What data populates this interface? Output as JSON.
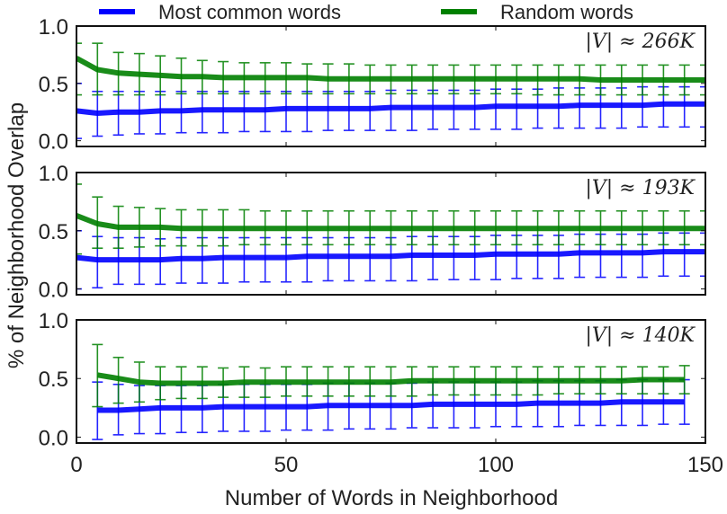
{
  "chart_data": [
    {
      "type": "line",
      "panel": 1,
      "annotation": "|V| ≈ 266K",
      "xlim": [
        0,
        150
      ],
      "ylim": [
        -0.05,
        1.0
      ],
      "yticks": [
        "0.0",
        "0.5",
        "1.0"
      ],
      "x": [
        0,
        5,
        10,
        15,
        20,
        25,
        30,
        35,
        40,
        45,
        50,
        55,
        60,
        65,
        70,
        75,
        80,
        85,
        90,
        95,
        100,
        105,
        110,
        115,
        120,
        125,
        130,
        135,
        140,
        145,
        150
      ],
      "series": [
        {
          "name": "Most common words",
          "color": "#0000ff",
          "values": [
            0.26,
            0.24,
            0.25,
            0.25,
            0.26,
            0.26,
            0.27,
            0.27,
            0.27,
            0.27,
            0.28,
            0.28,
            0.28,
            0.28,
            0.28,
            0.29,
            0.29,
            0.29,
            0.29,
            0.29,
            0.3,
            0.3,
            0.3,
            0.3,
            0.31,
            0.31,
            0.31,
            0.31,
            0.32,
            0.32,
            0.32
          ],
          "err_low": [
            0.02,
            0.04,
            0.05,
            0.06,
            0.06,
            0.07,
            0.07,
            0.07,
            0.08,
            0.08,
            0.08,
            0.08,
            0.09,
            0.09,
            0.09,
            0.09,
            0.09,
            0.1,
            0.1,
            0.1,
            0.1,
            0.1,
            0.11,
            0.11,
            0.11,
            0.11,
            0.11,
            0.12,
            0.12,
            0.12,
            0.12
          ],
          "err_high": [
            0.5,
            0.43,
            0.43,
            0.43,
            0.43,
            0.43,
            0.43,
            0.43,
            0.43,
            0.43,
            0.43,
            0.43,
            0.43,
            0.43,
            0.43,
            0.44,
            0.44,
            0.44,
            0.44,
            0.44,
            0.45,
            0.45,
            0.45,
            0.46,
            0.46,
            0.46,
            0.46,
            0.47,
            0.47,
            0.47,
            0.47
          ]
        },
        {
          "name": "Random words",
          "color": "#008000",
          "values": [
            0.72,
            0.62,
            0.59,
            0.58,
            0.57,
            0.56,
            0.56,
            0.55,
            0.55,
            0.55,
            0.55,
            0.55,
            0.54,
            0.54,
            0.54,
            0.54,
            0.54,
            0.54,
            0.54,
            0.54,
            0.54,
            0.54,
            0.54,
            0.54,
            0.54,
            0.53,
            0.53,
            0.53,
            0.53,
            0.53,
            0.53
          ],
          "err_low": [
            0.4,
            0.4,
            0.4,
            0.4,
            0.4,
            0.41,
            0.41,
            0.41,
            0.41,
            0.41,
            0.41,
            0.41,
            0.41,
            0.41,
            0.41,
            0.41,
            0.41,
            0.41,
            0.41,
            0.41,
            0.41,
            0.41,
            0.4,
            0.4,
            0.4,
            0.4,
            0.4,
            0.4,
            0.4,
            0.4,
            0.4
          ],
          "err_high": [
            0.85,
            0.85,
            0.77,
            0.76,
            0.74,
            0.72,
            0.7,
            0.69,
            0.68,
            0.68,
            0.68,
            0.67,
            0.67,
            0.67,
            0.66,
            0.66,
            0.66,
            0.66,
            0.66,
            0.66,
            0.66,
            0.66,
            0.66,
            0.66,
            0.66,
            0.66,
            0.66,
            0.66,
            0.66,
            0.66,
            0.66
          ]
        }
      ]
    },
    {
      "type": "line",
      "panel": 2,
      "annotation": "|V| ≈ 193K",
      "xlim": [
        0,
        150
      ],
      "ylim": [
        -0.05,
        1.0
      ],
      "yticks": [
        "0.0",
        "0.5",
        "1.0"
      ],
      "x": [
        0,
        5,
        10,
        15,
        20,
        25,
        30,
        35,
        40,
        45,
        50,
        55,
        60,
        65,
        70,
        75,
        80,
        85,
        90,
        95,
        100,
        105,
        110,
        115,
        120,
        125,
        130,
        135,
        140,
        145,
        150
      ],
      "series": [
        {
          "name": "Most common words",
          "color": "#0000ff",
          "values": [
            0.27,
            0.25,
            0.25,
            0.25,
            0.25,
            0.26,
            0.26,
            0.27,
            0.27,
            0.27,
            0.27,
            0.28,
            0.28,
            0.28,
            0.28,
            0.28,
            0.29,
            0.29,
            0.29,
            0.29,
            0.3,
            0.3,
            0.3,
            0.3,
            0.31,
            0.31,
            0.31,
            0.31,
            0.32,
            0.32,
            0.32
          ],
          "err_low": [
            0.0,
            0.01,
            0.04,
            0.04,
            0.04,
            0.05,
            0.05,
            0.05,
            0.06,
            0.06,
            0.06,
            0.06,
            0.07,
            0.07,
            0.07,
            0.07,
            0.07,
            0.08,
            0.08,
            0.08,
            0.08,
            0.09,
            0.09,
            0.09,
            0.1,
            0.1,
            0.1,
            0.1,
            0.11,
            0.11,
            0.11
          ],
          "err_high": [
            0.5,
            0.45,
            0.44,
            0.44,
            0.43,
            0.44,
            0.44,
            0.44,
            0.44,
            0.44,
            0.44,
            0.44,
            0.44,
            0.44,
            0.44,
            0.44,
            0.45,
            0.45,
            0.45,
            0.45,
            0.46,
            0.46,
            0.46,
            0.46,
            0.47,
            0.47,
            0.47,
            0.47,
            0.48,
            0.48,
            0.48
          ]
        },
        {
          "name": "Random words",
          "color": "#008000",
          "values": [
            0.63,
            0.56,
            0.53,
            0.53,
            0.53,
            0.52,
            0.52,
            0.52,
            0.52,
            0.52,
            0.52,
            0.52,
            0.52,
            0.52,
            0.52,
            0.52,
            0.52,
            0.52,
            0.52,
            0.52,
            0.52,
            0.52,
            0.52,
            0.52,
            0.52,
            0.52,
            0.52,
            0.52,
            0.52,
            0.52,
            0.52
          ],
          "err_low": [
            0.3,
            0.35,
            0.35,
            0.36,
            0.37,
            0.37,
            0.37,
            0.37,
            0.38,
            0.38,
            0.38,
            0.38,
            0.38,
            0.38,
            0.38,
            0.38,
            0.38,
            0.38,
            0.38,
            0.38,
            0.38,
            0.38,
            0.38,
            0.38,
            0.38,
            0.38,
            0.38,
            0.38,
            0.38,
            0.38,
            0.38
          ],
          "err_high": [
            0.9,
            0.79,
            0.71,
            0.7,
            0.69,
            0.68,
            0.68,
            0.68,
            0.68,
            0.67,
            0.67,
            0.67,
            0.67,
            0.67,
            0.67,
            0.67,
            0.67,
            0.67,
            0.67,
            0.67,
            0.67,
            0.67,
            0.67,
            0.67,
            0.67,
            0.67,
            0.67,
            0.67,
            0.67,
            0.67,
            0.67
          ]
        }
      ]
    },
    {
      "type": "line",
      "panel": 3,
      "annotation": "|V| ≈ 140K",
      "xlim": [
        0,
        150
      ],
      "ylim": [
        -0.05,
        1.0
      ],
      "yticks": [
        "0.0",
        "0.5",
        "1.0"
      ],
      "xticks": [
        "0",
        "50",
        "100",
        "150"
      ],
      "x": [
        5,
        10,
        15,
        20,
        25,
        30,
        35,
        40,
        45,
        50,
        55,
        60,
        65,
        70,
        75,
        80,
        85,
        90,
        95,
        100,
        105,
        110,
        115,
        120,
        125,
        130,
        135,
        140,
        145
      ],
      "series": [
        {
          "name": "Most common words",
          "color": "#0000ff",
          "values": [
            0.23,
            0.23,
            0.24,
            0.25,
            0.25,
            0.25,
            0.26,
            0.26,
            0.26,
            0.26,
            0.26,
            0.27,
            0.27,
            0.27,
            0.27,
            0.27,
            0.28,
            0.28,
            0.28,
            0.28,
            0.28,
            0.29,
            0.29,
            0.29,
            0.29,
            0.3,
            0.3,
            0.3,
            0.3
          ],
          "err_low": [
            -0.02,
            0.02,
            0.03,
            0.03,
            0.04,
            0.04,
            0.05,
            0.05,
            0.05,
            0.06,
            0.06,
            0.06,
            0.07,
            0.07,
            0.07,
            0.08,
            0.08,
            0.08,
            0.08,
            0.09,
            0.09,
            0.09,
            0.09,
            0.1,
            0.1,
            0.1,
            0.1,
            0.11,
            0.11
          ],
          "err_high": [
            0.47,
            0.45,
            0.44,
            0.44,
            0.44,
            0.44,
            0.45,
            0.45,
            0.45,
            0.45,
            0.45,
            0.46,
            0.46,
            0.46,
            0.46,
            0.46,
            0.47,
            0.47,
            0.47,
            0.47,
            0.47,
            0.48,
            0.48,
            0.48,
            0.48,
            0.49,
            0.49,
            0.49,
            0.49
          ]
        },
        {
          "name": "Random words",
          "color": "#008000",
          "values": [
            0.53,
            0.5,
            0.47,
            0.46,
            0.46,
            0.46,
            0.46,
            0.47,
            0.47,
            0.47,
            0.47,
            0.47,
            0.47,
            0.47,
            0.47,
            0.48,
            0.48,
            0.48,
            0.48,
            0.48,
            0.48,
            0.48,
            0.48,
            0.48,
            0.48,
            0.48,
            0.49,
            0.49,
            0.49
          ],
          "err_low": [
            0.26,
            0.29,
            0.3,
            0.32,
            0.33,
            0.33,
            0.34,
            0.34,
            0.34,
            0.35,
            0.35,
            0.35,
            0.35,
            0.35,
            0.35,
            0.35,
            0.36,
            0.36,
            0.36,
            0.36,
            0.36,
            0.36,
            0.37,
            0.37,
            0.37,
            0.37,
            0.37,
            0.37,
            0.37
          ],
          "err_high": [
            0.79,
            0.68,
            0.64,
            0.6,
            0.6,
            0.6,
            0.59,
            0.6,
            0.59,
            0.6,
            0.6,
            0.6,
            0.6,
            0.6,
            0.6,
            0.6,
            0.6,
            0.6,
            0.6,
            0.6,
            0.6,
            0.6,
            0.6,
            0.6,
            0.6,
            0.6,
            0.6,
            0.6,
            0.61
          ]
        }
      ]
    }
  ],
  "figure": {
    "xlabel": "Number of Words in Neighborhood",
    "ylabel": "% of Neighborhood Overlap",
    "legend": [
      {
        "label": "Most common words",
        "color": "#0000ff"
      },
      {
        "label": "Random words",
        "color": "#008000"
      }
    ],
    "legend_position": "top, outside axes",
    "grid": false
  }
}
